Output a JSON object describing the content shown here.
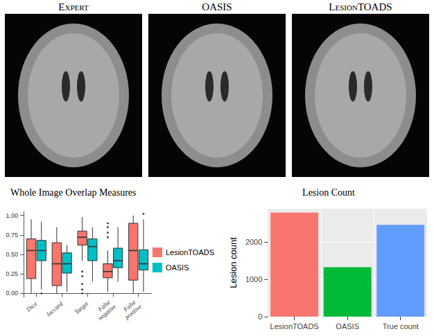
{
  "image_panels": {
    "titles": [
      "Expert",
      "OASIS",
      "LesionTOADS"
    ]
  },
  "chart_data": [
    {
      "type": "boxplot",
      "title": "Whole Image Overlap Measures",
      "categories": [
        "Dice",
        "Jaccard",
        "Target",
        "False negative",
        "False positive"
      ],
      "series": [
        {
          "name": "LesionTOADS",
          "color": "#F8766D",
          "values": [
            [
              0.0,
              0.19,
              0.55,
              0.7,
              0.95
            ],
            [
              0.0,
              0.1,
              0.38,
              0.65,
              0.85
            ],
            [
              0.42,
              0.62,
              0.72,
              0.8,
              0.98
            ],
            [
              0.02,
              0.2,
              0.28,
              0.38,
              0.55
            ],
            [
              0.0,
              0.17,
              0.55,
              0.9,
              1.0
            ]
          ],
          "outliers": [
            [],
            [],
            [
              0.28,
              0.22,
              0.12,
              0.05,
              0.0
            ],
            [
              0.72,
              0.78,
              0.85,
              0.9
            ],
            []
          ]
        },
        {
          "name": "OASIS",
          "color": "#00BFC4",
          "values": [
            [
              0.05,
              0.42,
              0.55,
              0.68,
              0.92
            ],
            [
              0.02,
              0.26,
              0.38,
              0.52,
              0.62
            ],
            [
              0.15,
              0.42,
              0.6,
              0.7,
              0.85
            ],
            [
              0.15,
              0.33,
              0.42,
              0.58,
              0.85
            ],
            [
              0.02,
              0.3,
              0.38,
              0.56,
              0.95
            ]
          ],
          "outliers": [
            [
              0.0
            ],
            [],
            [],
            [],
            [
              1.02
            ]
          ]
        }
      ],
      "ylim": [
        -0.05,
        1.05
      ],
      "yticks": [
        {
          "value": 0,
          "label": "0.00"
        },
        {
          "value": 0.25,
          "label": "0.25"
        },
        {
          "value": 0.5,
          "label": "0.50"
        },
        {
          "value": 0.75,
          "label": "0.75"
        },
        {
          "value": 1,
          "label": "1.00"
        }
      ],
      "grid": false,
      "legend": "right"
    },
    {
      "type": "bar",
      "title": "Lesion Count",
      "y_label": "Lesion count",
      "categories": [
        "LesionTOADS",
        "OASIS",
        "True count"
      ],
      "values": [
        2800,
        1330,
        2470
      ],
      "colors": [
        "#F8766D",
        "#00BA38",
        "#619CFF"
      ],
      "ylim": [
        0,
        2900
      ],
      "yticks": [
        0,
        1000,
        2000
      ],
      "grid": true
    }
  ]
}
